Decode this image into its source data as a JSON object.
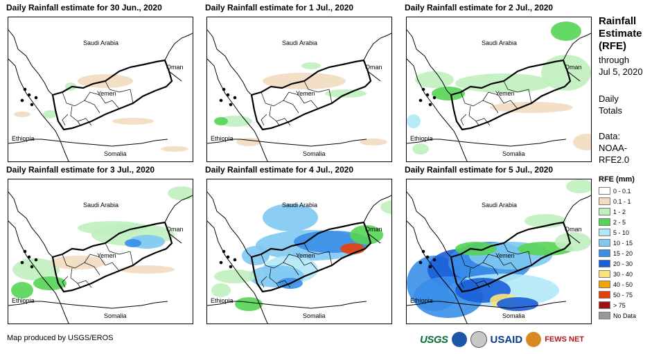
{
  "panels": [
    {
      "title": "Daily Rainfall estimate for 30 Jun., 2020",
      "day": 0
    },
    {
      "title": "Daily Rainfall estimate for 1 Jul., 2020",
      "day": 1
    },
    {
      "title": "Daily Rainfall estimate for 2 Jul., 2020",
      "day": 2
    },
    {
      "title": "Daily Rainfall estimate for 3 Jul., 2020",
      "day": 3
    },
    {
      "title": "Daily Rainfall estimate for 4 Jul., 2020",
      "day": 4
    },
    {
      "title": "Daily Rainfall estimate for 5 Jul., 2020",
      "day": 5
    }
  ],
  "map_labels": {
    "saudi": "Saudi Arabia",
    "oman": "Oman",
    "yemen": "Yemen",
    "ethiopia": "Ethiopia",
    "somalia": "Somalia"
  },
  "side": {
    "title_line1": "Rainfall",
    "title_line2": "Estimate",
    "title_line3": "(RFE)",
    "through": "through",
    "date": "Jul 5, 2020",
    "daily1": "Daily",
    "daily2": "Totals",
    "data1": "Data:",
    "data2": "NOAA-",
    "data3": "RFE2.0"
  },
  "legend": {
    "title": "RFE (mm)",
    "items": [
      {
        "label": "0 - 0.1",
        "color": "#ffffff"
      },
      {
        "label": "0.1 - 1",
        "color": "#f2dcc0"
      },
      {
        "label": "1 - 2",
        "color": "#bff0bf"
      },
      {
        "label": "2 - 5",
        "color": "#55d455"
      },
      {
        "label": "5 - 10",
        "color": "#b0e8f7"
      },
      {
        "label": "10 - 15",
        "color": "#7ec8f2"
      },
      {
        "label": "15 - 20",
        "color": "#3a8ee8"
      },
      {
        "label": "20 - 30",
        "color": "#1a5ed8"
      },
      {
        "label": "30 - 40",
        "color": "#fbe37a"
      },
      {
        "label": "40 - 50",
        "color": "#f5a10a"
      },
      {
        "label": "50 - 75",
        "color": "#e8400a"
      },
      {
        "label": "> 75",
        "color": "#a01010"
      },
      {
        "label": "No Data",
        "color": "#999999"
      }
    ]
  },
  "footer": "Map produced by USGS/EROS",
  "logos": {
    "usgs": "USGS",
    "usaid": "USAID",
    "fews": "FEWS NET",
    "noaa": "NOAA",
    "dos": "DOS"
  }
}
